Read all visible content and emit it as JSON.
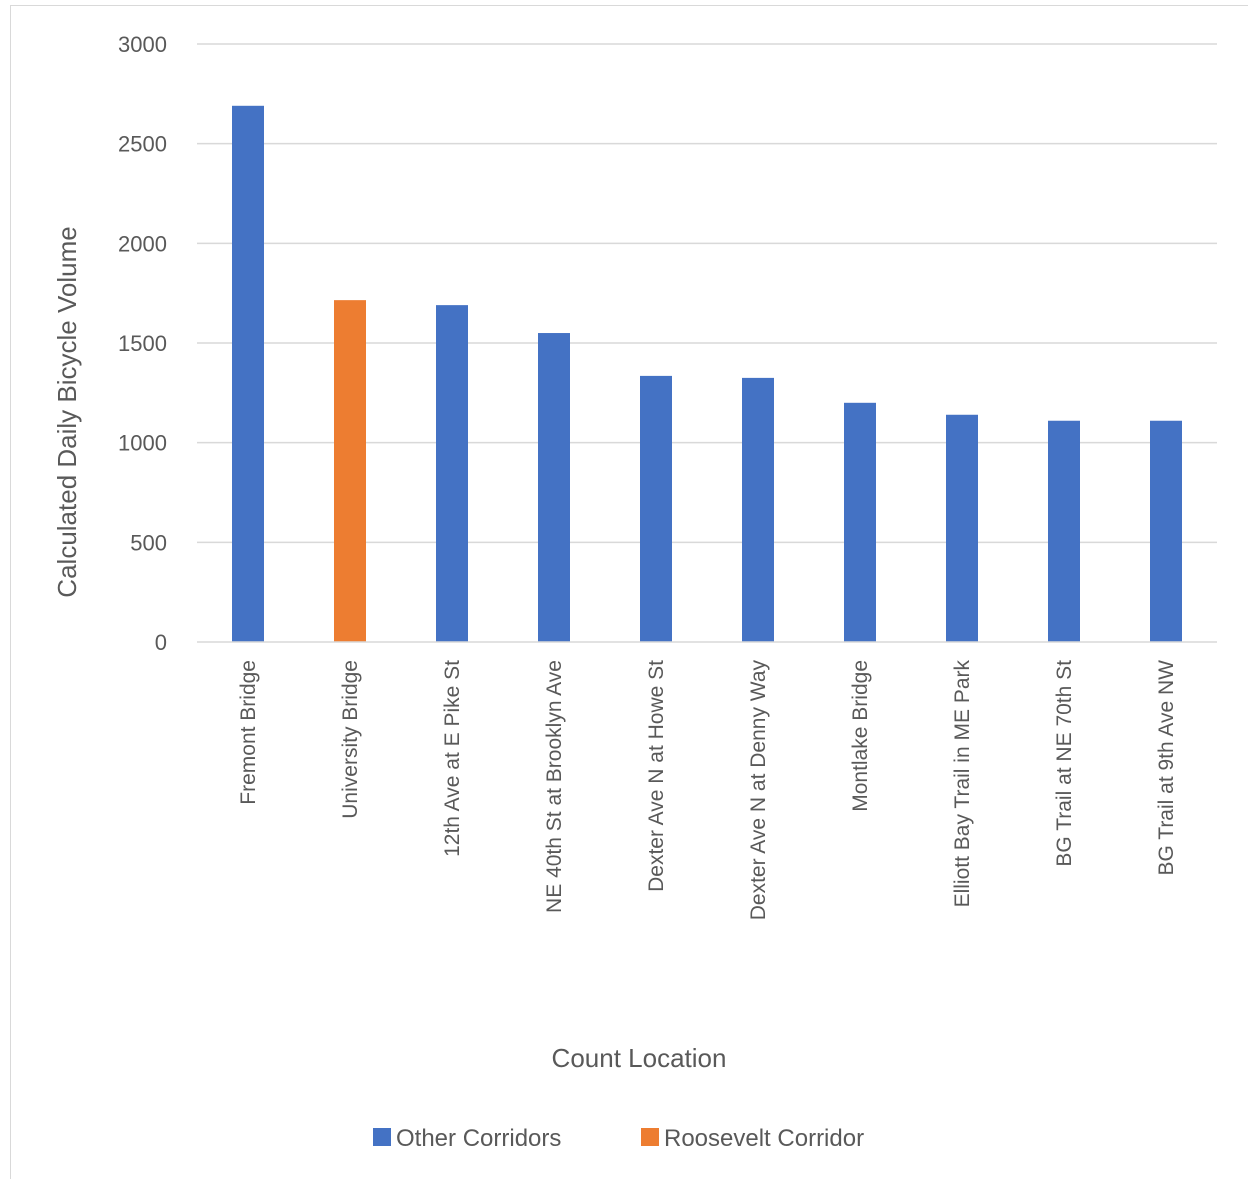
{
  "chart_data": {
    "type": "bar",
    "xlabel": "Count Location",
    "ylabel": "Calculated Daily Bicycle Volume",
    "ylim": [
      0,
      3000
    ],
    "yticks": [
      0,
      500,
      1000,
      1500,
      2000,
      2500,
      3000
    ],
    "grid": true,
    "legend_position": "bottom",
    "categories": [
      "Fremont Bridge",
      "University Bridge",
      "12th Ave at E Pike St",
      "NE 40th St at Brooklyn Ave",
      "Dexter Ave N at Howe St",
      "Dexter Ave N at Denny Way",
      "Montlake Bridge",
      "Elliott Bay Trail in ME Park",
      "BG Trail at NE 70th St",
      "BG Trail at 9th Ave NW"
    ],
    "series": [
      {
        "name": "Other Corridors",
        "color": "#4472c4",
        "values": [
          2690,
          null,
          1690,
          1550,
          1335,
          1325,
          1200,
          1140,
          1110,
          1110
        ]
      },
      {
        "name": "Roosevelt Corridor",
        "color": "#ed7d31",
        "values": [
          null,
          1715,
          null,
          null,
          null,
          null,
          null,
          null,
          null,
          null
        ]
      }
    ]
  }
}
